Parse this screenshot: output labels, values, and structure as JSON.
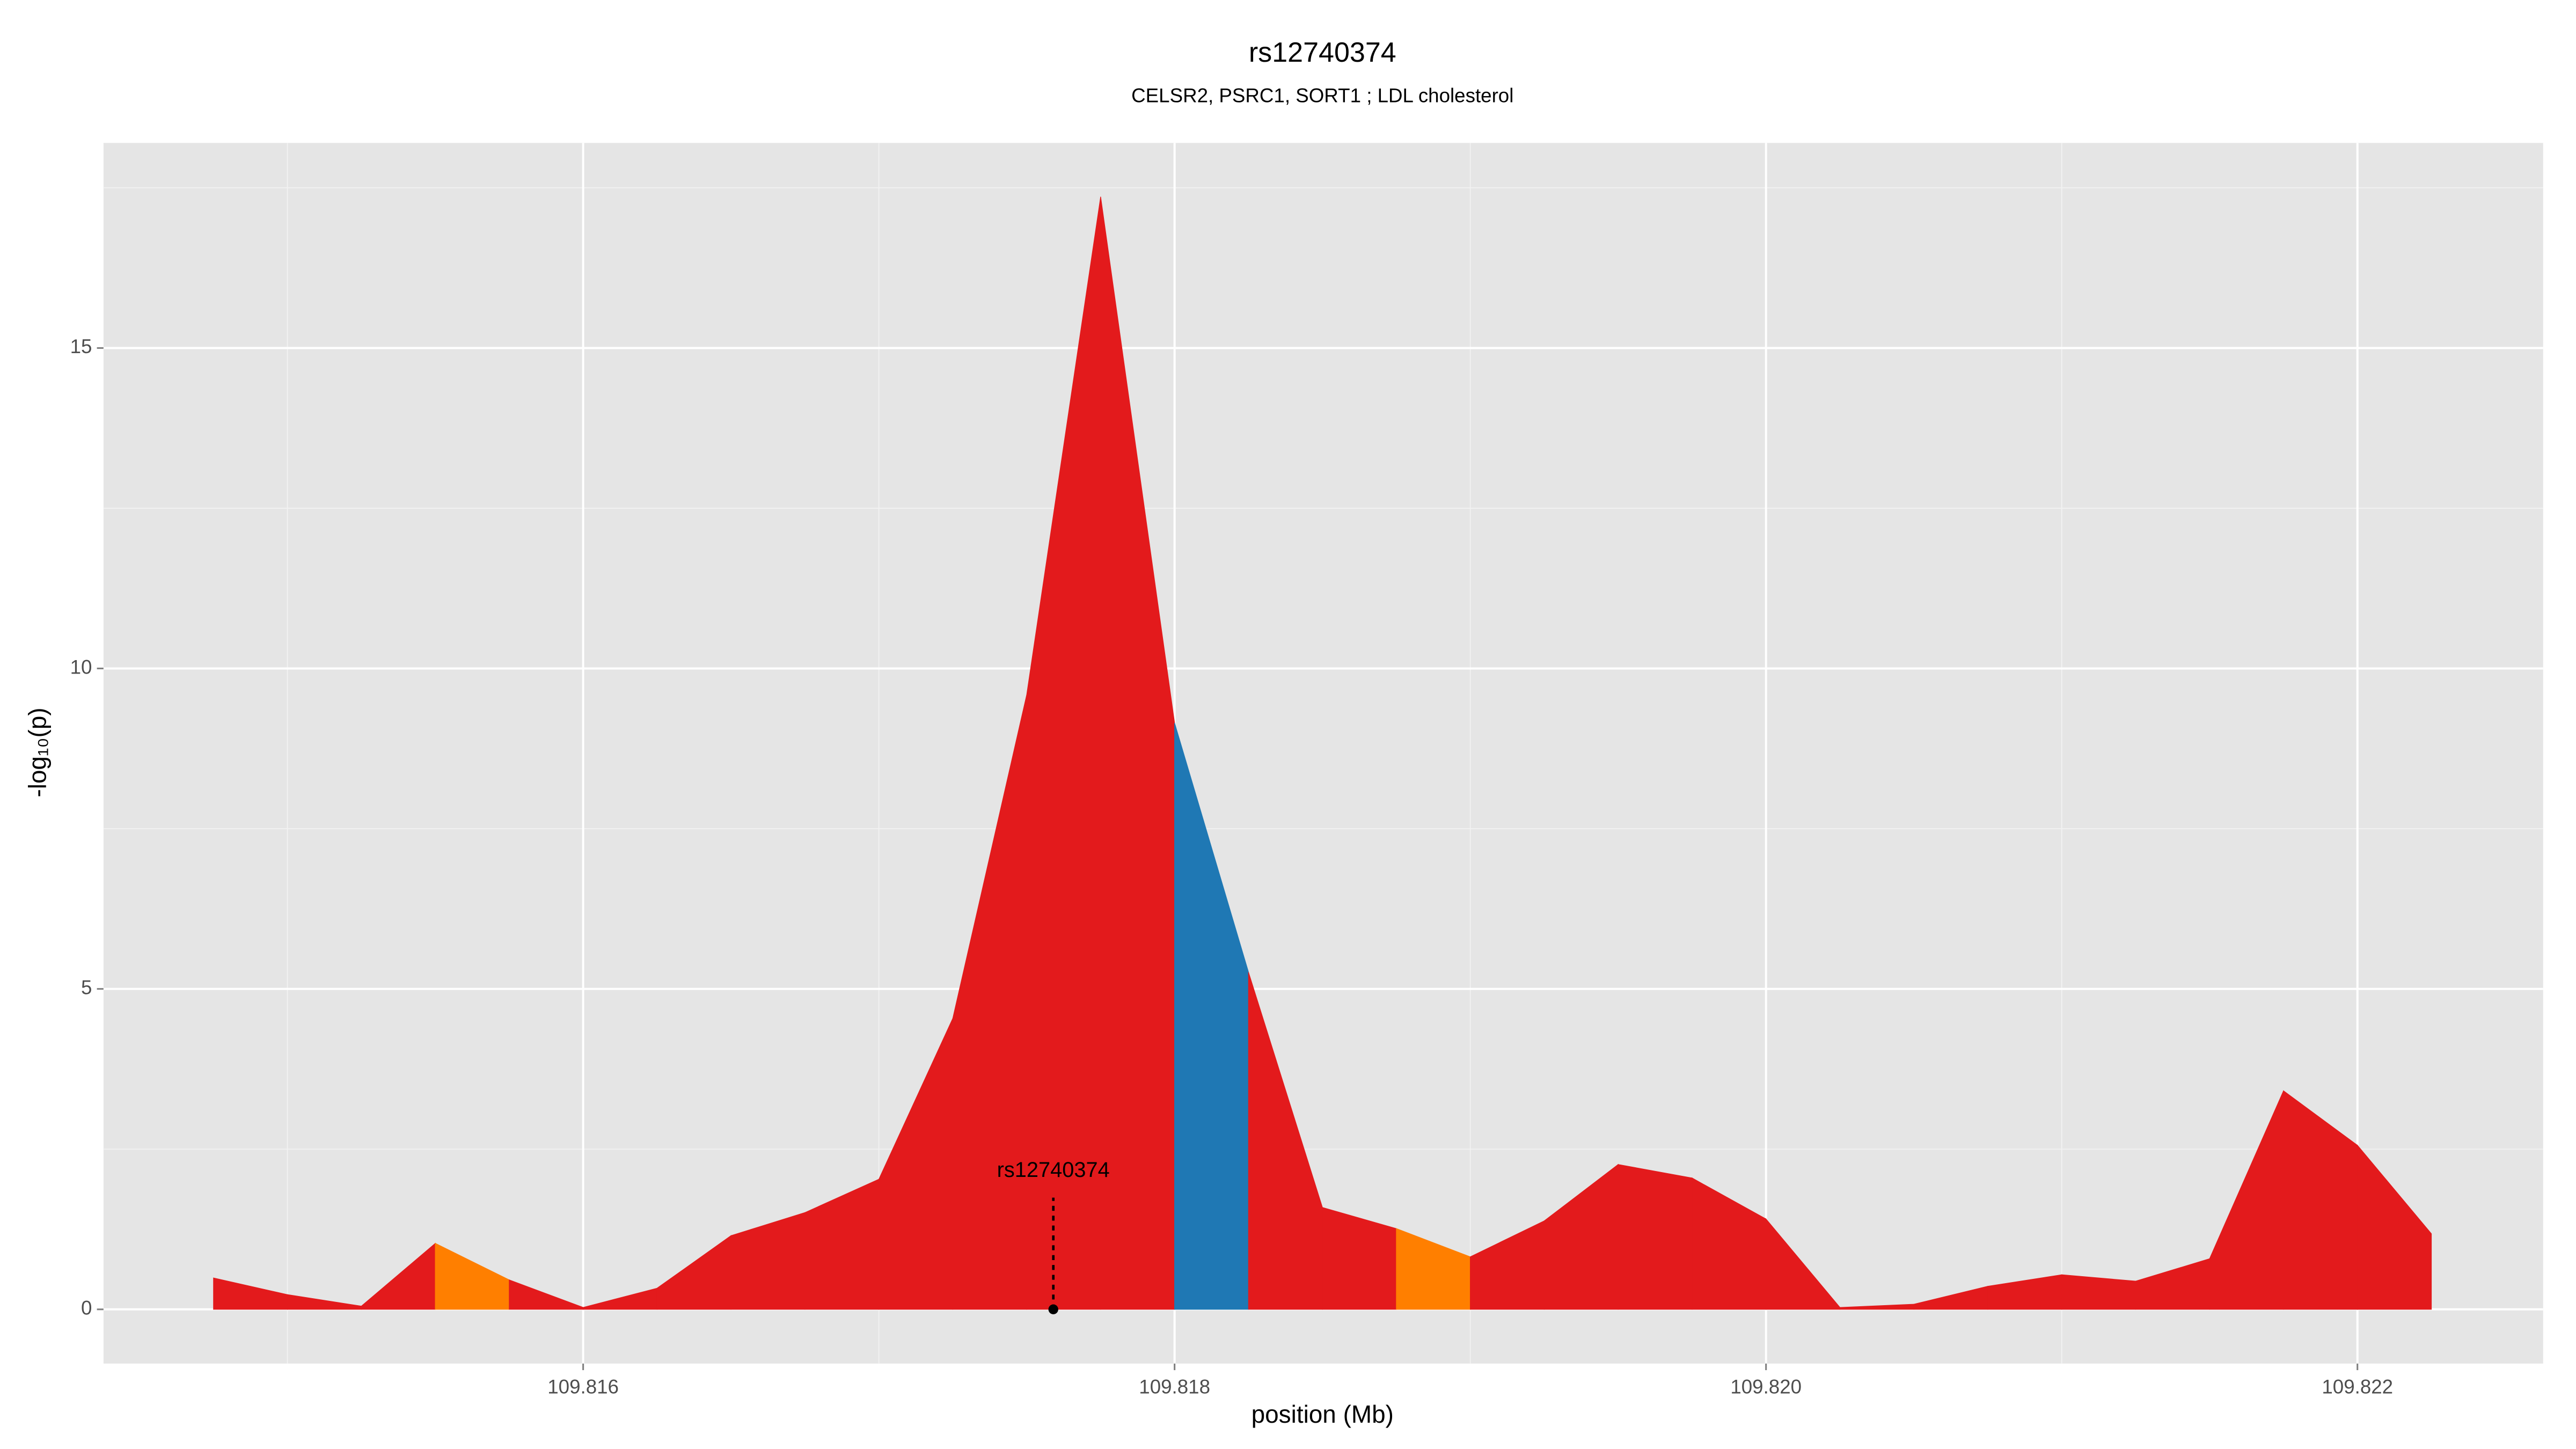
{
  "chart_data": {
    "type": "area",
    "title": "rs12740374",
    "subtitle": "CELSR2, PSRC1, SORT1 ; LDL cholesterol",
    "x_label": "position (Mb)",
    "y_label": "-log₁₀(p)",
    "x": [
      109.81475,
      109.815,
      109.81525,
      109.8155,
      109.81575,
      109.816,
      109.81625,
      109.8165,
      109.81675,
      109.817,
      109.81725,
      109.8175,
      109.81775,
      109.818,
      109.81825,
      109.8185,
      109.81875,
      109.819,
      109.81925,
      109.8195,
      109.81975,
      109.82,
      109.82025,
      109.8205,
      109.82075,
      109.821,
      109.82125,
      109.8215,
      109.82175,
      109.822,
      109.82225
    ],
    "values": [
      0.49,
      0.23,
      0.05,
      1.03,
      0.46,
      0.03,
      0.33,
      1.15,
      1.51,
      2.03,
      4.54,
      9.59,
      17.36,
      9.15,
      5.26,
      1.59,
      1.26,
      0.82,
      1.38,
      2.26,
      2.05,
      1.41,
      0.03,
      0.08,
      0.36,
      0.54,
      0.44,
      0.79,
      3.41,
      2.56,
      1.18
    ],
    "segment_colors": [
      "#e31a1c",
      "#e31a1c",
      "#e31a1c",
      "#ff7f00",
      "#e31a1c",
      "#e31a1c",
      "#e31a1c",
      "#e31a1c",
      "#e31a1c",
      "#e31a1c",
      "#e31a1c",
      "#e31a1c",
      "#e31a1c",
      "#1f78b4",
      "#e31a1c",
      "#e31a1c",
      "#ff7f00",
      "#e31a1c",
      "#e31a1c",
      "#e31a1c",
      "#e31a1c",
      "#e31a1c",
      "#e31a1c",
      "#e31a1c",
      "#e31a1c",
      "#e31a1c",
      "#e31a1c",
      "#e31a1c",
      "#e31a1c",
      "#e31a1c"
    ],
    "annotation": {
      "label": "rs12740374",
      "x": 109.81759
    },
    "xlim": [
      109.814378,
      109.822628
    ],
    "ylim": [
      -0.846,
      18.2
    ],
    "xticks": [
      109.816,
      109.818,
      {
        "value": 109.82,
        "label": "109.820"
      },
      109.822
    ],
    "yticks": [
      0,
      5,
      10,
      15
    ],
    "grid": true
  }
}
